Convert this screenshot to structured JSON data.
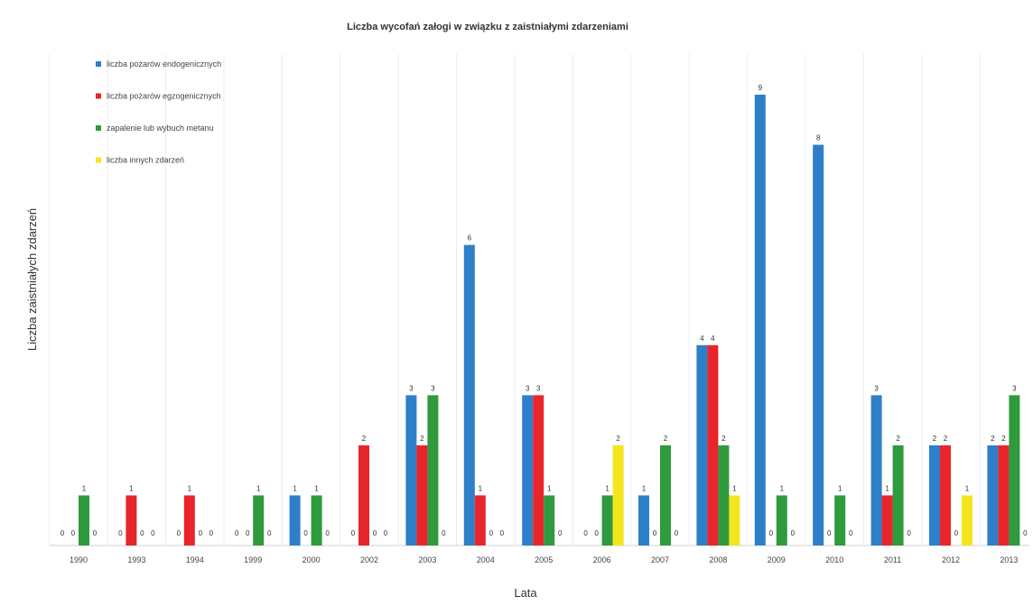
{
  "chart_data": {
    "type": "bar",
    "title": "Liczba wycofań załogi w związku z zaistniałymi zdarzeniami",
    "xlabel": "Lata",
    "ylabel": "Liczba zaistniałych zdarzeń",
    "categories": [
      "1990",
      "1993",
      "1994",
      "1999",
      "2000",
      "2002",
      "2003",
      "2004",
      "2005",
      "2006",
      "2007",
      "2008",
      "2009",
      "2010",
      "2011",
      "2012",
      "2013"
    ],
    "series": [
      {
        "name": "liczba pożarów endogenicznych",
        "color": "#2e7fc9",
        "values": [
          0,
          0,
          0,
          0,
          1,
          0,
          3,
          6,
          3,
          0,
          1,
          4,
          9,
          8,
          3,
          2,
          2
        ]
      },
      {
        "name": "liczba pożarów egzogenicznych",
        "color": "#e8252a",
        "values": [
          0,
          1,
          1,
          0,
          0,
          2,
          2,
          1,
          3,
          0,
          0,
          4,
          0,
          0,
          1,
          2,
          2
        ]
      },
      {
        "name": "zapalenie lub wybuch metanu",
        "color": "#2f9a3e",
        "values": [
          1,
          0,
          0,
          1,
          1,
          0,
          3,
          0,
          1,
          1,
          2,
          2,
          1,
          1,
          2,
          0,
          3
        ]
      },
      {
        "name": "liczba innych zdarzeń",
        "color": "#f3e61e",
        "values": [
          0,
          0,
          0,
          0,
          0,
          0,
          0,
          0,
          0,
          2,
          0,
          1,
          0,
          0,
          0,
          1,
          0
        ]
      }
    ],
    "ylim": [
      0,
      9
    ],
    "grid": "vertical",
    "legend_position": "top-left"
  }
}
